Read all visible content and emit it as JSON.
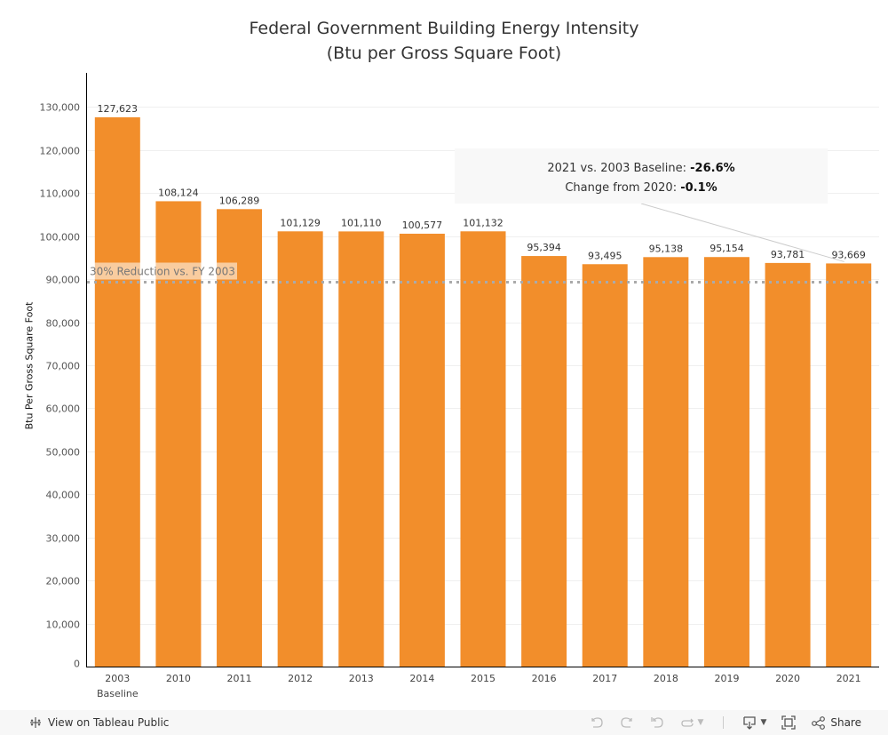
{
  "chart_data": {
    "type": "bar",
    "title": "Federal Government Building Energy Intensity",
    "subtitle": "(Btu per Gross Square Foot)",
    "xlabel": "",
    "ylabel": "Btu Per Gross Square Foot",
    "ylim": [
      0,
      135000
    ],
    "yticks": [
      0,
      10000,
      20000,
      30000,
      40000,
      50000,
      60000,
      70000,
      80000,
      90000,
      100000,
      110000,
      120000,
      130000
    ],
    "ytick_labels": [
      "0",
      "10,000",
      "20,000",
      "30,000",
      "40,000",
      "50,000",
      "60,000",
      "70,000",
      "80,000",
      "90,000",
      "100,000",
      "110,000",
      "120,000",
      "130,000"
    ],
    "grid": true,
    "categories": [
      "2003",
      "2010",
      "2011",
      "2012",
      "2013",
      "2014",
      "2015",
      "2016",
      "2017",
      "2018",
      "2019",
      "2020",
      "2021"
    ],
    "category_sublabels": [
      "Baseline",
      "",
      "",
      "",
      "",
      "",
      "",
      "",
      "",
      "",
      "",
      "",
      ""
    ],
    "values": [
      127623,
      108124,
      106289,
      101129,
      101110,
      100577,
      101132,
      95394,
      93495,
      95138,
      95154,
      93781,
      93669
    ],
    "value_labels": [
      "127,623",
      "108,124",
      "106,289",
      "101,129",
      "101,110",
      "100,577",
      "101,132",
      "95,394",
      "93,495",
      "95,138",
      "95,154",
      "93,781",
      "93,669"
    ],
    "bar_color": "#f28e2b",
    "reference_line": {
      "label": "30% Reduction vs. FY 2003",
      "value": 89336,
      "style": "dotted"
    },
    "annotation": {
      "line1_text": "2021 vs. 2003 Baseline: ",
      "line1_value": "-26.6%",
      "line2_text": "Change from 2020: ",
      "line2_value": "-0.1%",
      "target_category": "2021"
    }
  },
  "toolbar": {
    "view_on_label": "View on Tableau Public",
    "share_label": "Share"
  }
}
